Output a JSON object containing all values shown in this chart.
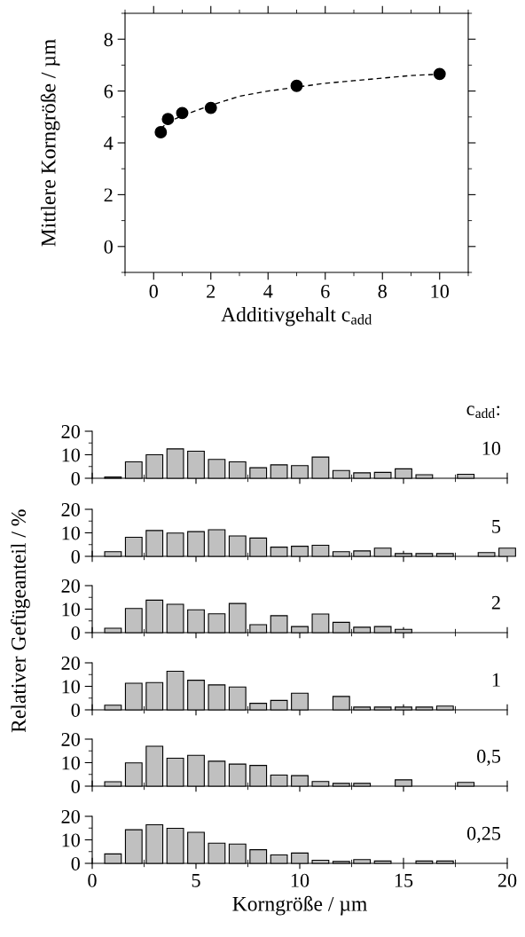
{
  "chart_data": [
    {
      "type": "scatter",
      "xlabel": "Additivgehalt c$_{add}$",
      "ylabel": "Mittlere Korngröße / µm",
      "xlim": [
        -1,
        11
      ],
      "ylim": [
        -1,
        9
      ],
      "xticks": [
        0,
        2,
        4,
        6,
        8,
        10
      ],
      "yticks": [
        0,
        2,
        4,
        6,
        8
      ],
      "grid": false,
      "legend": false,
      "series": [
        {
          "type": "scatter",
          "x": [
            0.25,
            0.5,
            1,
            2,
            5,
            10
          ],
          "values": [
            4.41,
            4.92,
            5.15,
            5.35,
            6.2,
            6.66
          ],
          "color": "#000000",
          "marker": "circle"
        },
        {
          "type": "line",
          "x": [
            0.25,
            0.5,
            1,
            2,
            3,
            4,
            5,
            6,
            7,
            8,
            9,
            10
          ],
          "values": [
            4.55,
            4.8,
            5.05,
            5.45,
            5.8,
            6.0,
            6.15,
            6.3,
            6.4,
            6.5,
            6.6,
            6.65
          ],
          "color": "#000000",
          "line_style": "dashed",
          "marker": "none"
        }
      ]
    },
    {
      "type": "bar",
      "x": [
        1,
        2,
        3,
        4,
        5,
        6,
        7,
        8,
        9,
        10,
        11,
        12,
        13,
        14,
        15,
        16,
        17,
        18
      ],
      "values": [
        0.5,
        7,
        10,
        12.5,
        11.5,
        8,
        7,
        4.5,
        5.7,
        5.4,
        9,
        3.3,
        2.3,
        2.5,
        4,
        1.5,
        null,
        1.7
      ],
      "color": "#c0c0c0",
      "xlim": [
        0,
        20
      ],
      "xticks": [
        0,
        5,
        10,
        15,
        20
      ],
      "ylim": [
        0,
        20
      ],
      "yticks": [
        0,
        10,
        20
      ],
      "tick_labels": "y",
      "annotations": [
        "c$_{add}$:",
        "10"
      ]
    },
    {
      "type": "bar",
      "x": [
        1,
        2,
        3,
        4,
        5,
        6,
        7,
        8,
        9,
        10,
        11,
        12,
        13,
        14,
        15,
        16,
        17,
        18,
        19,
        20
      ],
      "values": [
        2,
        8.1,
        11,
        9.9,
        10.5,
        11.3,
        8.7,
        7.8,
        3.9,
        4.3,
        4.7,
        2,
        2.3,
        3.5,
        1.2,
        1.2,
        1.2,
        null,
        1.6,
        3.5
      ],
      "color": "#c0c0c0",
      "xlim": [
        0,
        20
      ],
      "xticks": [
        0,
        5,
        10,
        15,
        20
      ],
      "ylim": [
        0,
        20
      ],
      "yticks": [
        0,
        10,
        20
      ],
      "tick_labels": "y",
      "annotations": [
        "5"
      ]
    },
    {
      "type": "bar",
      "x": [
        1,
        2,
        3,
        4,
        5,
        6,
        7,
        8,
        9,
        10,
        11,
        12,
        13,
        14,
        15
      ],
      "values": [
        1.9,
        10.3,
        13.8,
        12.1,
        9.7,
        8,
        12.4,
        3.4,
        7.2,
        2.6,
        7.9,
        4.4,
        2.3,
        2.6,
        1.4
      ],
      "color": "#c0c0c0",
      "xlim": [
        0,
        20
      ],
      "xticks": [
        0,
        5,
        10,
        15,
        20
      ],
      "ylim": [
        0,
        20
      ],
      "yticks": [
        0,
        10,
        20
      ],
      "tick_labels": "y",
      "ylabel": "Relativer Gefügeanteil / %",
      "annotations": [
        "2"
      ]
    },
    {
      "type": "bar",
      "x": [
        1,
        2,
        3,
        4,
        5,
        6,
        7,
        8,
        9,
        10,
        11,
        12,
        13,
        14,
        15,
        16,
        17
      ],
      "values": [
        2,
        11.3,
        11.6,
        16.4,
        12.6,
        10.6,
        9.7,
        2.8,
        4,
        7.1,
        null,
        5.7,
        1.2,
        1.2,
        1.2,
        1.2,
        1.6
      ],
      "color": "#c0c0c0",
      "xlim": [
        0,
        20
      ],
      "xticks": [
        0,
        5,
        10,
        15,
        20
      ],
      "ylim": [
        0,
        20
      ],
      "yticks": [
        0,
        10,
        20
      ],
      "tick_labels": "y",
      "annotations": [
        "1"
      ]
    },
    {
      "type": "bar",
      "x": [
        1,
        2,
        3,
        4,
        5,
        6,
        7,
        8,
        9,
        10,
        11,
        12,
        13,
        14,
        15,
        16,
        17,
        18
      ],
      "values": [
        1.9,
        9.9,
        17,
        11.9,
        13.1,
        10.6,
        9.4,
        8.8,
        4.7,
        4.5,
        2,
        1.2,
        1.2,
        null,
        2.7,
        null,
        null,
        1.6
      ],
      "color": "#c0c0c0",
      "xlim": [
        0,
        20
      ],
      "xticks": [
        0,
        5,
        10,
        15,
        20
      ],
      "ylim": [
        0,
        20
      ],
      "yticks": [
        0,
        10,
        20
      ],
      "tick_labels": "y",
      "annotations": [
        "0,5"
      ]
    },
    {
      "type": "bar",
      "x": [
        1,
        2,
        3,
        4,
        5,
        6,
        7,
        8,
        9,
        10,
        11,
        12,
        13,
        14,
        15,
        16,
        17
      ],
      "values": [
        4,
        14.3,
        16.4,
        14.9,
        13.2,
        8.6,
        8.2,
        5.8,
        3.6,
        4.4,
        1.3,
        0.8,
        1.6,
        1,
        null,
        1,
        1
      ],
      "color": "#c0c0c0",
      "xlim": [
        0,
        20
      ],
      "xticks": [
        0,
        5,
        10,
        15,
        20
      ],
      "ylim": [
        0,
        20
      ],
      "yticks": [
        0,
        10,
        20
      ],
      "xlabel": "Korngröße / µm",
      "annotations": [
        "0,25"
      ]
    }
  ]
}
